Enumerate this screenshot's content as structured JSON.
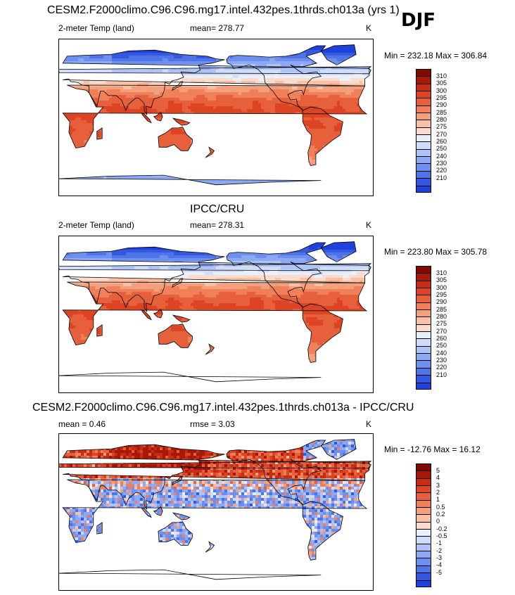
{
  "season_label": "DJF",
  "colors": {
    "temp_palette": [
      "#0c0a8c",
      "#1328c2",
      "#1f40da",
      "#3558e0",
      "#4f74e8",
      "#6d8ff0",
      "#8da9f5",
      "#aec4f8",
      "#cfdcfa",
      "#eaf0fb",
      "#fbdccc",
      "#f8c0a4",
      "#f4a07c",
      "#ef805a",
      "#e7603c",
      "#dc4424",
      "#c72d14",
      "#a5180a",
      "#800a02"
    ],
    "diff_palette": [
      "#0c0a8c",
      "#1328c2",
      "#1f40da",
      "#3558e0",
      "#4f74e8",
      "#6d8ff0",
      "#8da9f5",
      "#aec4f8",
      "#cfdcfa",
      "#eaf0fb",
      "#fbdccc",
      "#f8c0a4",
      "#f4a07c",
      "#ef805a",
      "#e7603c",
      "#dc4424",
      "#c72d14",
      "#a5180a",
      "#800a02"
    ],
    "ocean": "#ffffff",
    "coast": "#000000"
  },
  "panels": [
    {
      "title": "CESM2.F2000climo.C96.C96.mg17.intel.432pes.1thrds.ch013a (yrs 1)",
      "left_label": "2-meter Temp (land)",
      "mid_label": "mean= 278.77",
      "units": "K",
      "minmax": "Min = 232.18 Max = 306.84",
      "levels": [
        "310",
        "305",
        "300",
        "295",
        "290",
        "285",
        "280",
        "275",
        "270",
        "260",
        "250",
        "240",
        "230",
        "220",
        "210"
      ],
      "antarctica": true,
      "field": "model"
    },
    {
      "title": "IPCC/CRU",
      "left_label": "2-meter Temp (land)",
      "mid_label": "mean= 278.31",
      "units": "K",
      "minmax": "Min = 223.80 Max = 305.78",
      "levels": [
        "310",
        "305",
        "300",
        "295",
        "290",
        "285",
        "280",
        "275",
        "270",
        "260",
        "250",
        "240",
        "230",
        "220",
        "210"
      ],
      "antarctica": false,
      "field": "obs"
    },
    {
      "title": "CESM2.F2000climo.C96.C96.mg17.intel.432pes.1thrds.ch013a - IPCC/CRU",
      "left_label": "mean =   0.46",
      "mid_label": "rmse =   3.03",
      "units": "K",
      "minmax": "Min = -12.76 Max =  16.12",
      "levels": [
        "5",
        "4",
        "3",
        "2",
        "1",
        "0.5",
        "0.2",
        "0",
        "-0.2",
        "-0.5",
        "-1",
        "-2",
        "-3",
        "-4",
        "-5"
      ],
      "antarctica": false,
      "field": "diff"
    }
  ]
}
